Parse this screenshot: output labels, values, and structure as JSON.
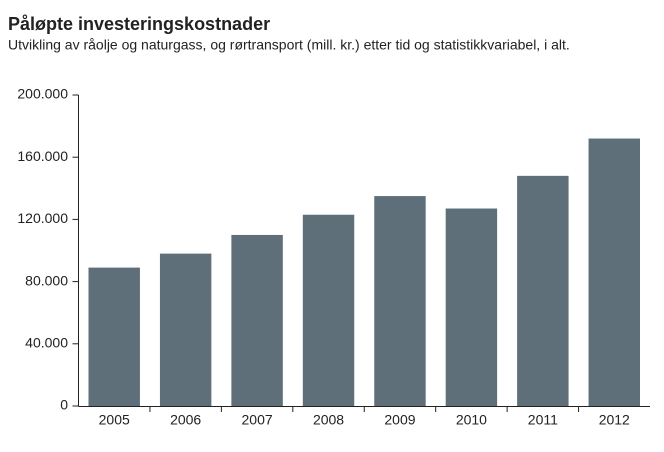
{
  "chart_data": {
    "type": "bar",
    "title": "Påløpte investeringskostnader",
    "subtitle": "Utvikling av råolje og naturgass, og rørtransport (mill. kr.) etter tid og statistikkvariabel, i alt.",
    "categories": [
      "2005",
      "2006",
      "2007",
      "2008",
      "2009",
      "2010",
      "2011",
      "2012"
    ],
    "values": [
      89000,
      98000,
      110000,
      123000,
      135000,
      127000,
      148000,
      172000
    ],
    "color": "#5f6f7a",
    "ylim": [
      0,
      200000
    ],
    "yticks": [
      0,
      {
        "value": 40000,
        "label": "40.000"
      },
      {
        "value": 80000,
        "label": "80.000"
      },
      {
        "value": 120000,
        "label": "120.000"
      },
      {
        "value": 160000,
        "label": "160.000"
      },
      {
        "value": 200000,
        "label": "200.000"
      }
    ],
    "grid": false
  }
}
